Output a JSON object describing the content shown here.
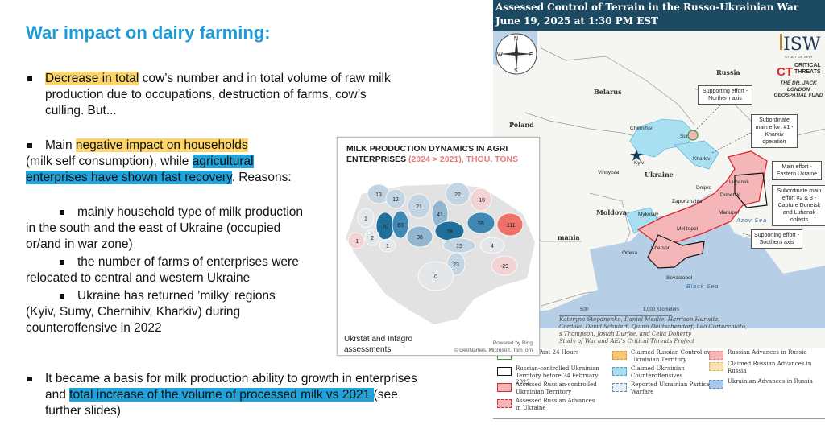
{
  "slide": {
    "title": "War impact on dairy farming:",
    "lines": [
      [
        {
          "t": "Decrease in total",
          "h": "y"
        },
        {
          "t": " cow’s number and in total volume of raw milk"
        }
      ],
      [
        {
          "t": "production due to occupations, destruction of farms, cow’s"
        }
      ],
      [
        {
          "t": "culling. But..."
        }
      ],
      [
        {
          "t": "Main "
        },
        {
          "t": "negative impact on households",
          "h": "y"
        }
      ],
      [
        {
          "t": "(milk self consumption), while "
        },
        {
          "t": "agricultural",
          "h": "b"
        }
      ],
      [
        {
          "t": "enterprises have shown fast recovery",
          "h": "b"
        },
        {
          "t": ". Reasons:"
        }
      ],
      [
        {
          "t": "mainly household type of milk production"
        }
      ],
      [
        {
          "t": "in the south and the east of Ukraine (occupied"
        }
      ],
      [
        {
          "t": "or/and in war zone)"
        }
      ],
      [
        {
          "t": "the number of farms of enterprises were"
        }
      ],
      [
        {
          "t": "relocated to central and western Ukraine"
        }
      ],
      [
        {
          "t": "Ukraine has returned ’milky’ regions"
        }
      ],
      [
        {
          "t": "(Kyiv, Sumy, Chernihiv, Kharkiv) during"
        }
      ],
      [
        {
          "t": "counteroffensive in 2022"
        }
      ],
      [
        {
          "t": "It became a basis for milk production ability to growth in enterprises"
        }
      ],
      [
        {
          "t": "and "
        },
        {
          "t": "total increase of the volume of processed milk vs 2021 ",
          "h": "b"
        },
        {
          "t": "(see"
        }
      ],
      [
        {
          "t": "further slides)"
        }
      ]
    ]
  },
  "milk_map": {
    "title_line1": "MILK PRODUCTION DYNAMICS IN AGRI",
    "title_line2_a": "ENTERPRISES ",
    "title_line2_b": "(2024 > 2021), THOU. TONS",
    "source": "Ukrstat and Infagro assessments",
    "powered": "Powered by Bing",
    "copyright": "© GeoNames, Microsoft, TomTom",
    "colors": {
      "strong_pos": "#1f6f9a",
      "pos": "#3f88b3",
      "mid_pos": "#92b6cf",
      "low_pos": "#c3d4e2",
      "zero": "#e4e7ea",
      "neg": "#f2d2d2",
      "strong_neg": "#f0706a",
      "other": "#e2e2e2"
    },
    "regions": [
      {
        "value": 13
      },
      {
        "value": 12
      },
      {
        "value": 21
      },
      {
        "value": 22
      },
      {
        "value": -10
      },
      {
        "value": 1
      },
      {
        "value": 70
      },
      {
        "value": 63
      },
      {
        "value": 41
      },
      {
        "value": 78
      },
      {
        "value": 55
      },
      {
        "value": -111
      },
      {
        "value": -1
      },
      {
        "value": 2
      },
      {
        "value": 36
      },
      {
        "value": 1
      },
      {
        "value": 15
      },
      {
        "value": 4
      },
      {
        "value": 23
      },
      {
        "value": -29
      },
      {
        "value": 0
      }
    ]
  },
  "war_map": {
    "title_line1": "Assessed Control of Terrain in the Russo-Ukrainian War",
    "title_line2": "June 19, 2025 at 1:30 PM EST",
    "compass": {
      "n": "N",
      "s": "S",
      "e": "E",
      "w": "W"
    },
    "logo_isw": "ISW",
    "logo_isw_sub": "STUDY OF WAR",
    "logo_ct": "CT",
    "logo_ct_text": "CRITICAL THREATS",
    "logo_fund": "THE DR. JACK LONDON GEOSPATIAL FUND",
    "countries": [
      "Russia",
      "Belarus",
      "Poland",
      "Ukraine",
      "Moldova",
      "mania"
    ],
    "cities": [
      "Chernihiv",
      "Sumy",
      "Kyiv",
      "Kharkiv",
      "Vinnytsia",
      "Dnipro",
      "Luhansk",
      "Donetsk",
      "Zaporizhzhia",
      "Mariupol",
      "Mykolaiv",
      "Melitopol",
      "Odesa",
      "Kherson",
      "Sevastopol"
    ],
    "seas": [
      "Azov Sea",
      "Black Sea"
    ],
    "callouts": [
      "Supporting effort - Northern axis",
      "Subordinate main effort #1 - Kharkiv operation",
      "Main effort - Eastern Ukraine",
      "Subordinate main effort #2 & 3 - Capture Donetsk and Luhansk oblasts",
      "Supporting effort - Southern axis"
    ],
    "scale": {
      "a": "500",
      "b": "1,000 Kilometers"
    },
    "credits": [
      "Kateryna Stepanenko, Daniel Mealie, Harrison Hurwitz,",
      "Cordola, David Schulert, Quinn Deutschendorf, Leo Cortecchiato,",
      "s Thompson, Josiah Durfee, and Celia Doherty",
      "Study of War and AEI’s Critical Threats Project"
    ],
    "legend": [
      {
        "label": "s in the Past 24 Hours",
        "color": "#ffffff",
        "border": "#3a9a3a"
      },
      {
        "label": "Russian-controlled Ukrainian Territory before 24 February 2022",
        "color": "#ffffff",
        "border": "#111111"
      },
      {
        "label": "Assessed Russian-controlled Ukrainian Territory",
        "color": "#f4b6b8",
        "border": "#e0262b"
      },
      {
        "label": "Assessed Russian Advances in Ukraine",
        "color": "#f4b6b8",
        "border": "#e0262b"
      },
      {
        "label": "Claimed Russian Control over Ukrainian Territory",
        "color": "#f9c77a",
        "border": "#e0952b"
      },
      {
        "label": "Claimed Ukrainian Counteroffensives",
        "color": "#a8e0f2",
        "border": "#4aa8d0"
      },
      {
        "label": "Reported Ukrainian Partisan Warfare",
        "color": "#e8eef6",
        "border": "#6a8ab8"
      },
      {
        "label": "Russian Advances in Russia",
        "color": "#f4b6b8",
        "border": "#e07a7a"
      },
      {
        "label": "Claimed Russian Advances in Russia",
        "color": "#fae3b2",
        "border": "#e0b060"
      },
      {
        "label": "Ukrainian Advances in Russia",
        "color": "#a8c8e8",
        "border": "#5a88c0"
      }
    ]
  }
}
